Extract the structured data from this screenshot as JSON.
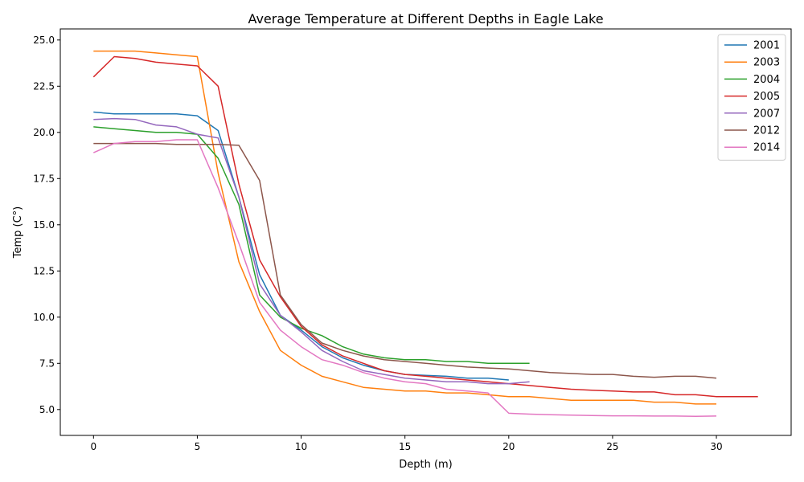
{
  "chart_data": {
    "type": "line",
    "title": "Average Temperature at Different Depths in Eagle Lake",
    "xlabel": "Depth (m)",
    "ylabel": "Temp (C°)",
    "xlim": [
      -1.6,
      33.6
    ],
    "ylim": [
      3.6,
      25.6
    ],
    "xticks": [
      0,
      5,
      10,
      15,
      20,
      25,
      30
    ],
    "xtick_labels": [
      "0",
      "5",
      "10",
      "15",
      "20",
      "25",
      "30"
    ],
    "yticks": [
      5.0,
      7.5,
      10.0,
      12.5,
      15.0,
      17.5,
      20.0,
      22.5,
      25.0
    ],
    "ytick_labels": [
      "5.0",
      "7.5",
      "10.0",
      "12.5",
      "15.0",
      "17.5",
      "20.0",
      "22.5",
      "25.0"
    ],
    "grid": false,
    "legend_position": "top-right",
    "series": [
      {
        "name": "2001",
        "color": "#1f77b4",
        "x": [
          0,
          1,
          2,
          3,
          4,
          5,
          6,
          7,
          8,
          9,
          10,
          11,
          12,
          13,
          14,
          15,
          16,
          17,
          18,
          19,
          20
        ],
        "y": [
          21.1,
          21.0,
          21.0,
          21.0,
          21.0,
          20.9,
          20.1,
          16.5,
          12.3,
          10.1,
          9.3,
          8.4,
          7.8,
          7.4,
          7.1,
          6.9,
          6.85,
          6.8,
          6.7,
          6.7,
          6.6
        ]
      },
      {
        "name": "2003",
        "color": "#ff7f0e",
        "x": [
          0,
          1,
          2,
          3,
          4,
          5,
          6,
          7,
          8,
          9,
          10,
          11,
          12,
          13,
          14,
          15,
          16,
          17,
          18,
          19,
          20,
          21,
          22,
          23,
          24,
          25,
          26,
          27,
          28,
          29,
          30
        ],
        "y": [
          24.4,
          24.4,
          24.4,
          24.3,
          24.2,
          24.1,
          17.8,
          13.0,
          10.3,
          8.2,
          7.4,
          6.8,
          6.5,
          6.2,
          6.1,
          6.0,
          6.0,
          5.9,
          5.9,
          5.8,
          5.7,
          5.7,
          5.6,
          5.5,
          5.5,
          5.5,
          5.5,
          5.4,
          5.4,
          5.3,
          5.3
        ]
      },
      {
        "name": "2004",
        "color": "#2ca02c",
        "x": [
          0,
          1,
          2,
          3,
          4,
          5,
          6,
          7,
          8,
          9,
          10,
          11,
          12,
          13,
          14,
          15,
          16,
          17,
          18,
          19,
          20,
          21
        ],
        "y": [
          20.3,
          20.2,
          20.1,
          20.0,
          20.0,
          19.9,
          18.6,
          16.1,
          11.2,
          10.0,
          9.4,
          9.0,
          8.4,
          8.0,
          7.8,
          7.7,
          7.7,
          7.6,
          7.6,
          7.5,
          7.5,
          7.5
        ]
      },
      {
        "name": "2005",
        "color": "#d62728",
        "x": [
          0,
          1,
          2,
          3,
          4,
          5,
          6,
          7,
          8,
          9,
          10,
          11,
          12,
          13,
          14,
          15,
          16,
          17,
          18,
          19,
          20,
          21,
          22,
          23,
          24,
          25,
          26,
          27,
          28,
          29,
          30,
          31,
          32
        ],
        "y": [
          23.0,
          24.1,
          24.0,
          23.8,
          23.7,
          23.6,
          22.5,
          17.2,
          13.1,
          11.1,
          9.5,
          8.5,
          7.9,
          7.5,
          7.1,
          6.9,
          6.8,
          6.7,
          6.6,
          6.5,
          6.4,
          6.3,
          6.2,
          6.1,
          6.05,
          6.0,
          5.95,
          5.95,
          5.8,
          5.8,
          5.7,
          5.7,
          5.7
        ]
      },
      {
        "name": "2007",
        "color": "#9467bd",
        "x": [
          0,
          1,
          2,
          3,
          4,
          5,
          6,
          7,
          8,
          9,
          10,
          11,
          12,
          13,
          14,
          15,
          16,
          17,
          18,
          19,
          20,
          21
        ],
        "y": [
          20.7,
          20.75,
          20.7,
          20.4,
          20.3,
          19.9,
          19.7,
          16.5,
          11.8,
          10.1,
          9.2,
          8.2,
          7.6,
          7.1,
          6.9,
          6.7,
          6.6,
          6.5,
          6.5,
          6.4,
          6.4,
          6.5
        ]
      },
      {
        "name": "2012",
        "color": "#8c564b",
        "x": [
          0,
          1,
          2,
          3,
          4,
          5,
          6,
          7,
          8,
          9,
          10,
          11,
          12,
          13,
          14,
          15,
          16,
          17,
          18,
          19,
          20,
          21,
          22,
          23,
          24,
          25,
          26,
          27,
          28,
          29,
          30
        ],
        "y": [
          19.4,
          19.4,
          19.4,
          19.4,
          19.35,
          19.35,
          19.35,
          19.3,
          17.4,
          11.2,
          9.6,
          8.6,
          8.2,
          7.9,
          7.7,
          7.6,
          7.5,
          7.4,
          7.3,
          7.25,
          7.2,
          7.1,
          7.0,
          6.95,
          6.9,
          6.9,
          6.8,
          6.75,
          6.8,
          6.8,
          6.7
        ]
      },
      {
        "name": "2014",
        "color": "#e377c2",
        "x": [
          0,
          1,
          2,
          3,
          4,
          5,
          6,
          7,
          8,
          9,
          10,
          11,
          12,
          13,
          14,
          15,
          16,
          17,
          18,
          19,
          20,
          21,
          22,
          23,
          24,
          25,
          26,
          27,
          28,
          29,
          30
        ],
        "y": [
          18.9,
          19.4,
          19.5,
          19.5,
          19.6,
          19.6,
          17.0,
          14.0,
          10.8,
          9.3,
          8.4,
          7.7,
          7.4,
          7.0,
          6.7,
          6.5,
          6.4,
          6.1,
          6.0,
          5.9,
          4.8,
          4.75,
          4.72,
          4.7,
          4.68,
          4.66,
          4.66,
          4.65,
          4.65,
          4.63,
          4.65
        ]
      }
    ]
  }
}
